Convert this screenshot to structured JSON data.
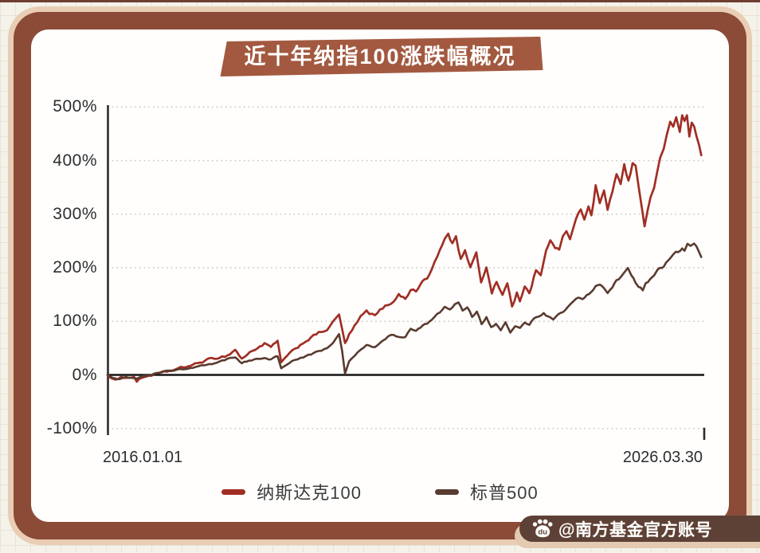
{
  "title": {
    "text": "近十年纳指100涨跌幅概况"
  },
  "watermark": {
    "icon": "baidu-paw-icon",
    "icon_text": "du",
    "text": "@南方基金官方账号"
  },
  "colors": {
    "banner_bg": "#a2593f",
    "banner_text": "#ffffff",
    "card_border": "#8b4b37",
    "card_border_outer": "#e9ceb5",
    "card_bg": "#fffefd",
    "page_bg": "#f5f2ea",
    "axis_text": "#2d2d2d",
    "nasdaq_red": "#a02e24",
    "sp_brown": "#5a3b2f",
    "watermark_bg": "#5e4136",
    "watermark_shadow": "#e3cab1"
  },
  "chart_data": {
    "type": "line",
    "title": "近十年纳指100涨跌幅概况",
    "x_axis": {
      "start_label": "2016.01.01",
      "end_label": "2026.03.30",
      "range_years": [
        2016.0,
        2026.25
      ]
    },
    "y_axis": {
      "unit": "%",
      "tick_labels": [
        "500%",
        "400%",
        "300%",
        "200%",
        "100%",
        "0%",
        "-100%"
      ],
      "tick_values": [
        500,
        400,
        300,
        200,
        100,
        0,
        -100
      ],
      "ylim": [
        -100,
        520
      ],
      "gridlines": "dotted",
      "zero_line": "solid-black"
    },
    "legend": {
      "position": "bottom",
      "entries": [
        {
          "key": "nasdaq100",
          "label": "纳斯达克100",
          "color": "#a02e24"
        },
        {
          "key": "sp500",
          "label": "标普500",
          "color": "#5a3b2f"
        }
      ]
    },
    "series": [
      {
        "key": "nasdaq100",
        "name": "纳斯达克100",
        "color": "#a02e24",
        "stroke_width": 2.7,
        "points": [
          [
            0,
            0
          ],
          [
            0.007,
            -8
          ],
          [
            0.013,
            -11
          ],
          [
            0.023,
            -2
          ],
          [
            0.033,
            -6
          ],
          [
            0.044,
            -3
          ],
          [
            0.049,
            -12
          ],
          [
            0.06,
            -4
          ],
          [
            0.074,
            0
          ],
          [
            0.087,
            3
          ],
          [
            0.107,
            8
          ],
          [
            0.127,
            14
          ],
          [
            0.147,
            20
          ],
          [
            0.167,
            28
          ],
          [
            0.183,
            32
          ],
          [
            0.201,
            36
          ],
          [
            0.214,
            47
          ],
          [
            0.225,
            30
          ],
          [
            0.234,
            38
          ],
          [
            0.247,
            48
          ],
          [
            0.263,
            58
          ],
          [
            0.274,
            52
          ],
          [
            0.285,
            62
          ],
          [
            0.291,
            24
          ],
          [
            0.301,
            35
          ],
          [
            0.314,
            48
          ],
          [
            0.328,
            60
          ],
          [
            0.341,
            70
          ],
          [
            0.354,
            78
          ],
          [
            0.368,
            85
          ],
          [
            0.378,
            98
          ],
          [
            0.388,
            113
          ],
          [
            0.393,
            85
          ],
          [
            0.398,
            58
          ],
          [
            0.405,
            75
          ],
          [
            0.414,
            90
          ],
          [
            0.424,
            108
          ],
          [
            0.434,
            118
          ],
          [
            0.448,
            110
          ],
          [
            0.461,
            125
          ],
          [
            0.475,
            134
          ],
          [
            0.488,
            150
          ],
          [
            0.499,
            142
          ],
          [
            0.508,
            160
          ],
          [
            0.517,
            155
          ],
          [
            0.528,
            175
          ],
          [
            0.539,
            185
          ],
          [
            0.548,
            210
          ],
          [
            0.557,
            230
          ],
          [
            0.565,
            255
          ],
          [
            0.571,
            264
          ],
          [
            0.578,
            245
          ],
          [
            0.584,
            258
          ],
          [
            0.592,
            215
          ],
          [
            0.599,
            235
          ],
          [
            0.608,
            200
          ],
          [
            0.618,
            225
          ],
          [
            0.626,
            175
          ],
          [
            0.635,
            200
          ],
          [
            0.644,
            155
          ],
          [
            0.652,
            175
          ],
          [
            0.662,
            150
          ],
          [
            0.67,
            170
          ],
          [
            0.678,
            128
          ],
          [
            0.686,
            152
          ],
          [
            0.691,
            135
          ],
          [
            0.699,
            168
          ],
          [
            0.707,
            155
          ],
          [
            0.718,
            195
          ],
          [
            0.726,
            185
          ],
          [
            0.735,
            230
          ],
          [
            0.742,
            254
          ],
          [
            0.75,
            235
          ],
          [
            0.757,
            232
          ],
          [
            0.763,
            256
          ],
          [
            0.769,
            269
          ],
          [
            0.775,
            255
          ],
          [
            0.785,
            294
          ],
          [
            0.793,
            313
          ],
          [
            0.799,
            288
          ],
          [
            0.806,
            316
          ],
          [
            0.811,
            295
          ],
          [
            0.818,
            355
          ],
          [
            0.825,
            318
          ],
          [
            0.832,
            343
          ],
          [
            0.838,
            309
          ],
          [
            0.846,
            345
          ],
          [
            0.853,
            373
          ],
          [
            0.86,
            351
          ],
          [
            0.866,
            390
          ],
          [
            0.873,
            365
          ],
          [
            0.88,
            398
          ],
          [
            0.885,
            388
          ],
          [
            0.89,
            355
          ],
          [
            0.896,
            310
          ],
          [
            0.9,
            278
          ],
          [
            0.905,
            310
          ],
          [
            0.91,
            330
          ],
          [
            0.916,
            345
          ],
          [
            0.921,
            380
          ],
          [
            0.926,
            410
          ],
          [
            0.932,
            425
          ],
          [
            0.937,
            450
          ],
          [
            0.943,
            470
          ],
          [
            0.948,
            462
          ],
          [
            0.953,
            478
          ],
          [
            0.959,
            455
          ],
          [
            0.963,
            484
          ],
          [
            0.967,
            470
          ],
          [
            0.971,
            478
          ],
          [
            0.975,
            445
          ],
          [
            0.979,
            472
          ],
          [
            0.983,
            465
          ],
          [
            0.987,
            445
          ],
          [
            0.991,
            430
          ],
          [
            0.995,
            410
          ]
        ]
      },
      {
        "key": "sp500",
        "name": "标普500",
        "color": "#5a3b2f",
        "stroke_width": 2.6,
        "points": [
          [
            0,
            0
          ],
          [
            0.009,
            -5
          ],
          [
            0.02,
            -8
          ],
          [
            0.031,
            -3
          ],
          [
            0.04,
            -6
          ],
          [
            0.049,
            -7
          ],
          [
            0.06,
            -2
          ],
          [
            0.074,
            1
          ],
          [
            0.087,
            5
          ],
          [
            0.107,
            8
          ],
          [
            0.127,
            11
          ],
          [
            0.147,
            15
          ],
          [
            0.167,
            18
          ],
          [
            0.183,
            22
          ],
          [
            0.201,
            30
          ],
          [
            0.214,
            32
          ],
          [
            0.225,
            22
          ],
          [
            0.237,
            27
          ],
          [
            0.25,
            30
          ],
          [
            0.263,
            32
          ],
          [
            0.274,
            29
          ],
          [
            0.285,
            35
          ],
          [
            0.291,
            12
          ],
          [
            0.301,
            20
          ],
          [
            0.314,
            28
          ],
          [
            0.328,
            33
          ],
          [
            0.341,
            38
          ],
          [
            0.354,
            44
          ],
          [
            0.368,
            50
          ],
          [
            0.378,
            60
          ],
          [
            0.388,
            77
          ],
          [
            0.393,
            45
          ],
          [
            0.398,
            2
          ],
          [
            0.405,
            25
          ],
          [
            0.414,
            35
          ],
          [
            0.424,
            48
          ],
          [
            0.434,
            55
          ],
          [
            0.448,
            52
          ],
          [
            0.461,
            65
          ],
          [
            0.475,
            75
          ],
          [
            0.488,
            72
          ],
          [
            0.499,
            70
          ],
          [
            0.508,
            85
          ],
          [
            0.517,
            82
          ],
          [
            0.528,
            92
          ],
          [
            0.539,
            98
          ],
          [
            0.548,
            110
          ],
          [
            0.557,
            118
          ],
          [
            0.565,
            126
          ],
          [
            0.574,
            120
          ],
          [
            0.582,
            130
          ],
          [
            0.588,
            135
          ],
          [
            0.595,
            120
          ],
          [
            0.603,
            128
          ],
          [
            0.611,
            108
          ],
          [
            0.619,
            118
          ],
          [
            0.627,
            95
          ],
          [
            0.635,
            108
          ],
          [
            0.643,
            88
          ],
          [
            0.651,
            95
          ],
          [
            0.659,
            82
          ],
          [
            0.667,
            98
          ],
          [
            0.675,
            80
          ],
          [
            0.683,
            90
          ],
          [
            0.691,
            88
          ],
          [
            0.699,
            98
          ],
          [
            0.707,
            95
          ],
          [
            0.715,
            105
          ],
          [
            0.723,
            110
          ],
          [
            0.731,
            114
          ],
          [
            0.739,
            108
          ],
          [
            0.747,
            104
          ],
          [
            0.755,
            112
          ],
          [
            0.763,
            118
          ],
          [
            0.771,
            125
          ],
          [
            0.781,
            138
          ],
          [
            0.789,
            145
          ],
          [
            0.796,
            142
          ],
          [
            0.803,
            150
          ],
          [
            0.811,
            155
          ],
          [
            0.818,
            165
          ],
          [
            0.825,
            170
          ],
          [
            0.832,
            160
          ],
          [
            0.838,
            152
          ],
          [
            0.846,
            163
          ],
          [
            0.853,
            175
          ],
          [
            0.86,
            183
          ],
          [
            0.866,
            192
          ],
          [
            0.872,
            199
          ],
          [
            0.878,
            185
          ],
          [
            0.885,
            172
          ],
          [
            0.89,
            165
          ],
          [
            0.897,
            158
          ],
          [
            0.902,
            170
          ],
          [
            0.909,
            178
          ],
          [
            0.916,
            188
          ],
          [
            0.922,
            196
          ],
          [
            0.929,
            200
          ],
          [
            0.936,
            208
          ],
          [
            0.943,
            215
          ],
          [
            0.949,
            225
          ],
          [
            0.956,
            230
          ],
          [
            0.963,
            236
          ],
          [
            0.967,
            232
          ],
          [
            0.972,
            244
          ],
          [
            0.977,
            240
          ],
          [
            0.983,
            246
          ],
          [
            0.987,
            238
          ],
          [
            0.991,
            228
          ],
          [
            0.995,
            220
          ]
        ]
      }
    ]
  }
}
